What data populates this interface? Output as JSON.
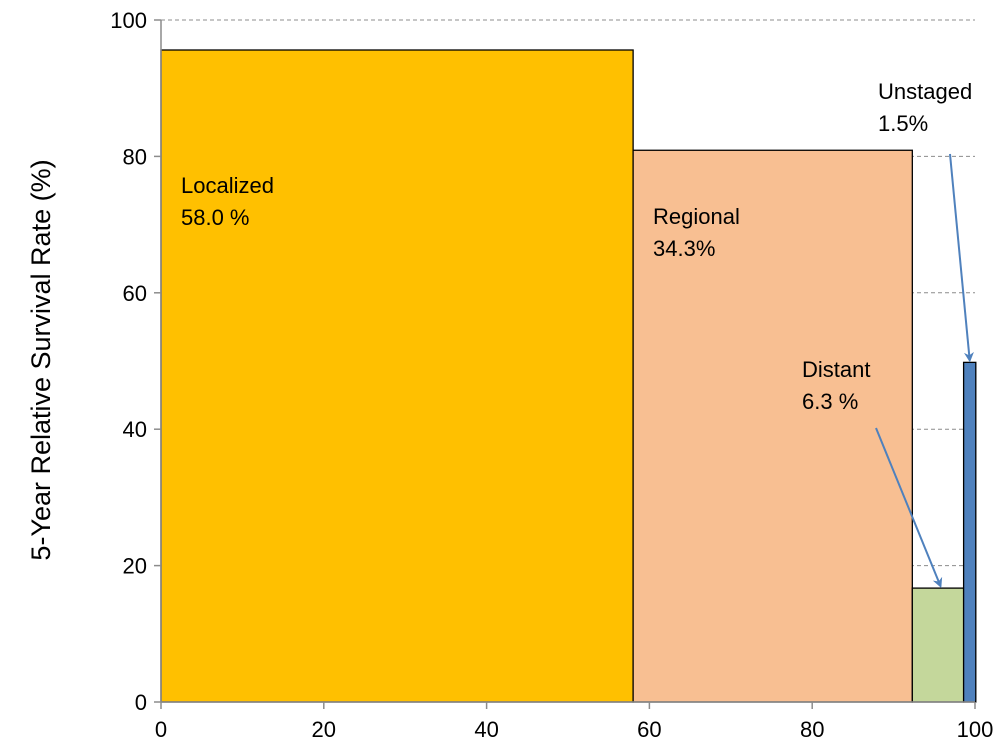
{
  "chart_data": {
    "type": "bar",
    "title": "",
    "xlabel": "",
    "ylabel": "5-Year Relative Survival Rate (%)",
    "xlim": [
      0,
      100
    ],
    "ylim": [
      0,
      100
    ],
    "x_ticks": [
      "0",
      "20",
      "40",
      "60",
      "80",
      "100"
    ],
    "y_ticks": [
      "0",
      "20",
      "40",
      "60",
      "80",
      "100"
    ],
    "grid": "horizontal dashed",
    "legend": "none",
    "bars": [
      {
        "name": "Localized",
        "share_label": "58.0 %",
        "x_start": 0,
        "width": 58.0,
        "survival": 95.6,
        "color": "#FFC000"
      },
      {
        "name": "Regional",
        "share_label": "34.3%",
        "x_start": 58.0,
        "width": 34.3,
        "survival": 80.9,
        "color": "#F8BF92"
      },
      {
        "name": "Distant",
        "share_label": "6.3 %",
        "x_start": 92.3,
        "width": 6.3,
        "survival": 16.7,
        "color": "#C4D79B"
      },
      {
        "name": "Unstaged",
        "share_label": "1.5%",
        "x_start": 98.6,
        "width": 1.5,
        "survival": 49.8,
        "color": "#4F81BD"
      }
    ]
  }
}
